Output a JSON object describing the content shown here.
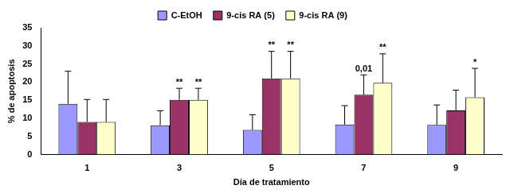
{
  "chart_data": {
    "type": "bar",
    "x_label": "Día de tratamiento",
    "y_label": "% de apoptosis",
    "categories": [
      1,
      3,
      5,
      7,
      9
    ],
    "series": [
      {
        "name": "C-EtOH",
        "color": "#9999ff",
        "values": [
          14,
          8.1,
          6.8,
          8.3,
          8.2
        ],
        "errors": [
          9,
          4,
          4.2,
          5.2,
          5.5
        ],
        "annotations": [
          null,
          null,
          null,
          null,
          null
        ]
      },
      {
        "name": "9-cis RA (5)",
        "color": "#993366",
        "values": [
          9,
          15.1,
          21,
          16.5,
          12.2
        ],
        "errors": [
          6.2,
          3.2,
          7.5,
          5.5,
          5.6
        ],
        "annotations": [
          null,
          "**",
          "**",
          "0,01",
          null
        ]
      },
      {
        "name": "9-cis RA (9)",
        "color": "#ffffcc",
        "values": [
          9,
          15.1,
          21,
          19.8,
          15.8
        ],
        "errors": [
          6.2,
          3.2,
          7.5,
          8,
          8
        ],
        "annotations": [
          null,
          "**",
          "**",
          "**",
          "*"
        ]
      }
    ],
    "ylim": [
      0,
      35
    ],
    "yticks": [
      0,
      5,
      10,
      15,
      20,
      25,
      30,
      35
    ],
    "grid": false,
    "legend": "top"
  }
}
